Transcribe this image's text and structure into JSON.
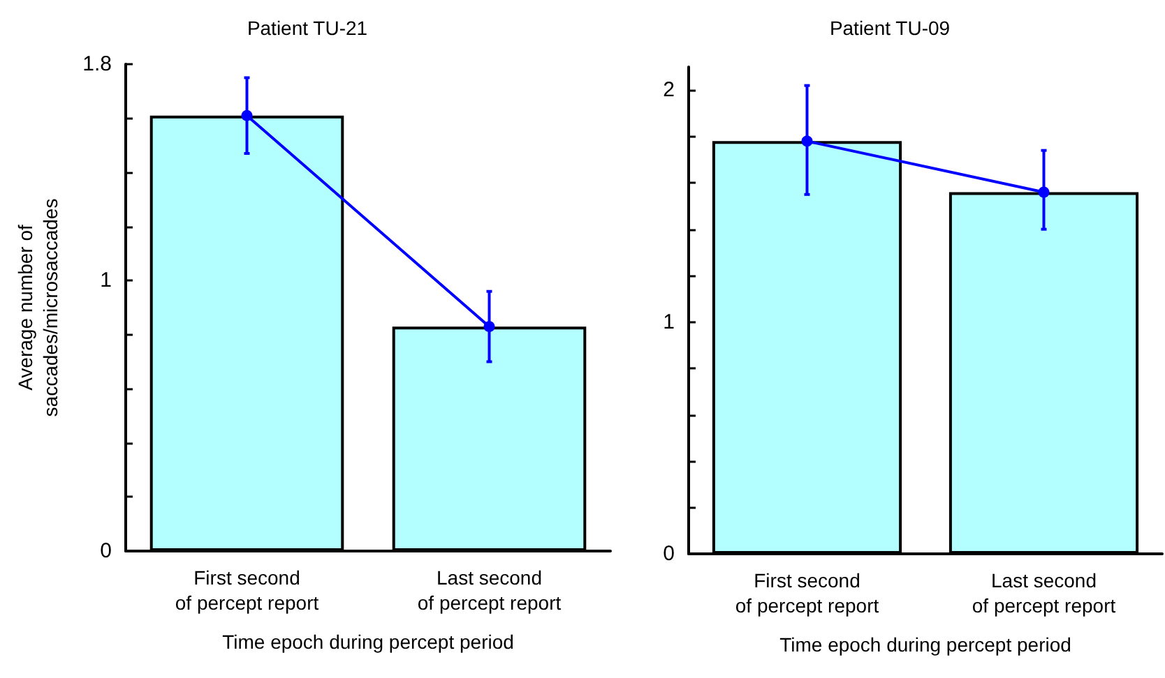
{
  "chart_data": [
    {
      "type": "bar",
      "title": "Patient TU-21",
      "xlabel": "Time epoch during percept period",
      "ylabel": "Average number of\nsaccades/microsaccades",
      "categories": [
        "First second\nof percept report",
        "Last second\nof percept report"
      ],
      "ylim": [
        0,
        1.8
      ],
      "yticks": [
        0,
        {
          "value": 0.2,
          "label": null
        },
        {
          "value": 0.4,
          "label": null
        },
        {
          "value": 0.6,
          "label": null
        },
        {
          "value": 0.8,
          "label": null
        },
        1,
        {
          "value": 1.2,
          "label": null
        },
        {
          "value": 1.4,
          "label": null
        },
        {
          "value": 1.6,
          "label": null
        },
        1.8
      ],
      "marker": "circle",
      "series": [
        {
          "color": "#b3ffff",
          "values": [
            1.61,
            0.83
          ]
        },
        {
          "type": "line",
          "color": "#0000ff",
          "values": [
            1.61,
            0.83
          ],
          "errors": [
            [
              1.47,
              1.75
            ],
            [
              0.7,
              0.96
            ]
          ]
        }
      ]
    },
    {
      "type": "bar",
      "title": "Patient TU-09",
      "xlabel": "Time epoch during percept period",
      "categories": [
        "First second\nof percept report",
        "Last second\nof percept report"
      ],
      "ylim": [
        0,
        2.1
      ],
      "yticks": [
        0,
        {
          "value": 0.2,
          "label": null
        },
        {
          "value": 0.4,
          "label": null
        },
        {
          "value": 0.6,
          "label": null
        },
        {
          "value": 0.8,
          "label": null
        },
        1,
        {
          "value": 1.2,
          "label": null
        },
        {
          "value": 1.4,
          "label": null
        },
        {
          "value": 1.6,
          "label": null
        },
        {
          "value": 1.8,
          "label": null
        },
        2
      ],
      "marker": "circle",
      "series": [
        {
          "color": "#b3ffff",
          "values": [
            1.78,
            1.56
          ]
        },
        {
          "type": "line",
          "color": "#0000ff",
          "values": [
            1.78,
            1.56
          ],
          "errors": [
            [
              1.55,
              2.02
            ],
            [
              1.4,
              1.74
            ]
          ]
        }
      ]
    }
  ]
}
